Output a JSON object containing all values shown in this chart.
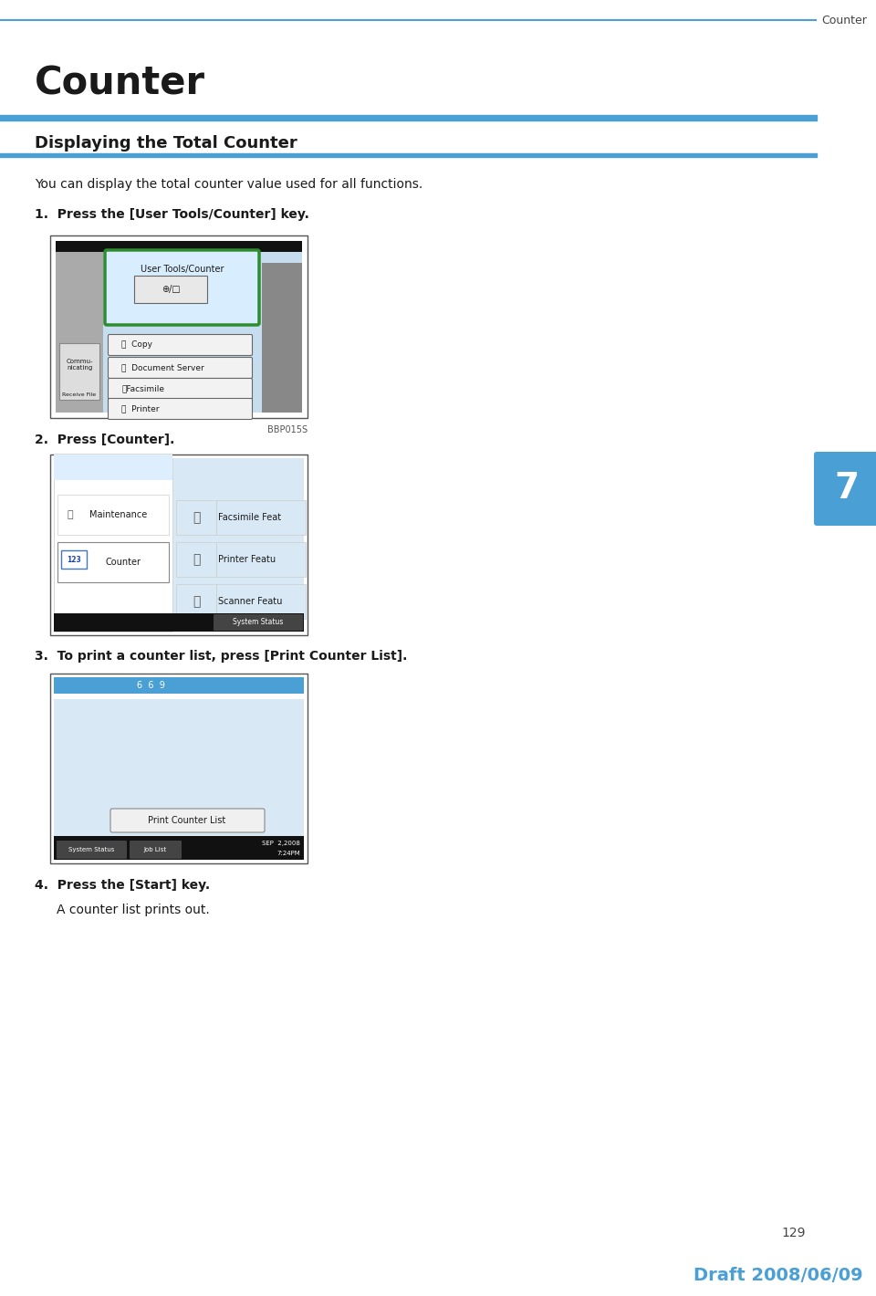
{
  "bg_color": "#ffffff",
  "blue_color": "#4a9fd4",
  "dark_color": "#1a1a1a",
  "page_header": "Counter",
  "main_title": "Counter",
  "section_title": "Displaying the Total Counter",
  "intro_text": "You can display the total counter value used for all functions.",
  "step1": "1.  Press the [User Tools/Counter] key.",
  "step2": "2.  Press [Counter].",
  "step3": "3.  To print a counter list, press [Print Counter List].",
  "step4": "4.  Press the [Start] key.",
  "step4b": "A counter list prints out.",
  "img1_caption": "BBP015S",
  "page_number": "129",
  "draft_text": "Draft 2008/06/09",
  "tab_text": "7"
}
